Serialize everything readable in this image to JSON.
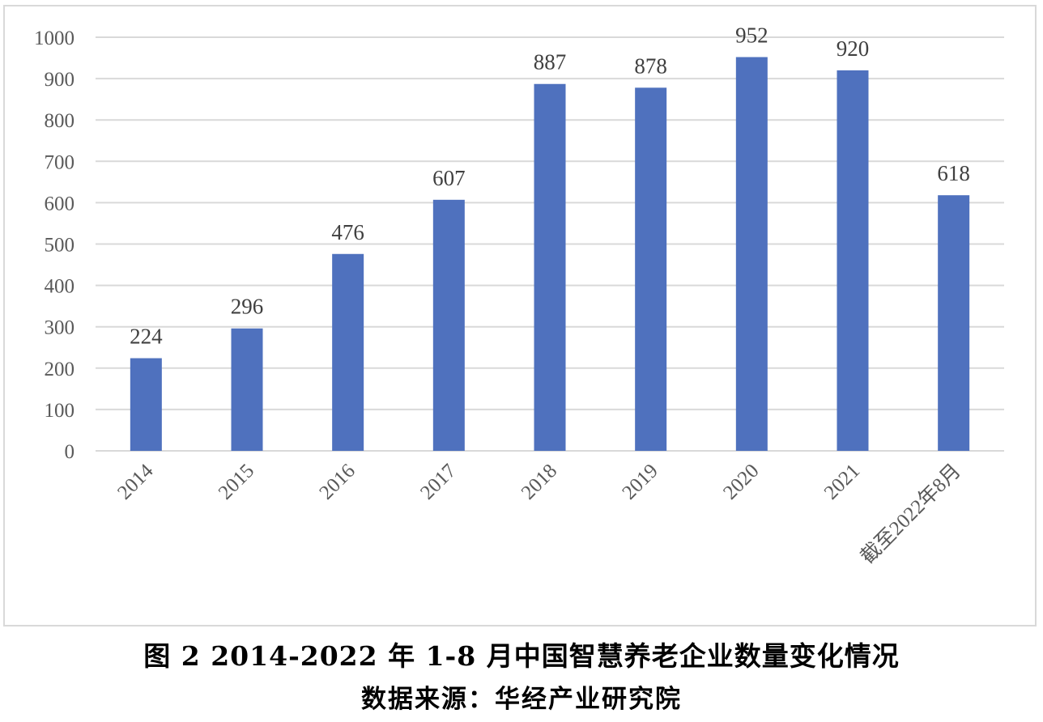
{
  "chart_data": {
    "type": "bar",
    "categories": [
      "2014",
      "2015",
      "2016",
      "2017",
      "2018",
      "2019",
      "2020",
      "2021",
      "截至2022年8月"
    ],
    "values": [
      224,
      296,
      476,
      607,
      887,
      878,
      952,
      920,
      618
    ],
    "ylim": [
      0,
      1000
    ],
    "yticks": [
      0,
      100,
      200,
      300,
      400,
      500,
      600,
      700,
      800,
      900,
      1000
    ],
    "grid": true,
    "bar_color": "#4f71be",
    "gridline_color": "#d9d9d9",
    "title": "",
    "xlabel": "",
    "ylabel": ""
  },
  "caption": {
    "title": "图 2 2014-2022 年 1-8 月中国智慧养老企业数量变化情况",
    "source": "数据来源：华经产业研究院"
  }
}
